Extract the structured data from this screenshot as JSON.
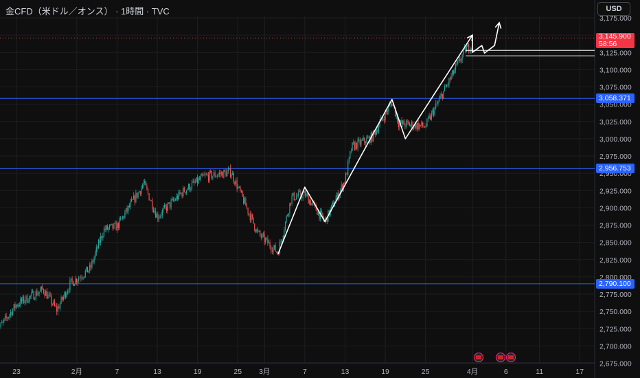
{
  "header": {
    "title": "金CFD（米ドル／オンス） · 1時間 · TVC",
    "currency": "USD"
  },
  "colors": {
    "background": "#0f0f0f",
    "grid": "#1e1f23",
    "up": "#26a69a",
    "down": "#ef5350",
    "level_line": "#2962ff",
    "current_price": "#f23645",
    "drawing": "#ffffff",
    "axis_text": "#b2b5be"
  },
  "chart_data": {
    "type": "candlestick",
    "timeframe": "1h",
    "x_tick_labels": [
      "23",
      "2月",
      "7",
      "13",
      "19",
      "25",
      "3月",
      "7",
      "13",
      "19",
      "25",
      "4月",
      "6",
      "11",
      "17"
    ],
    "y_tick_labels": [
      "3,175.000",
      "3,150.000",
      "3,125.000",
      "3,100.000",
      "3,075.000",
      "3,050.000",
      "3,025.000",
      "3,000.000",
      "2,975.000",
      "2,950.000",
      "2,925.000",
      "2,900.000",
      "2,875.000",
      "2,850.000",
      "2,825.000",
      "2,800.000",
      "2,775.000",
      "2,750.000",
      "2,725.000",
      "2,700.000",
      "2,675.000"
    ],
    "ylim": [
      2670,
      3180
    ],
    "horizontal_levels": [
      {
        "label": "3,058.371",
        "value": 3058.371
      },
      {
        "label": "2,956.753",
        "value": 2956.753
      },
      {
        "label": "2,790.100",
        "value": 2790.1
      }
    ],
    "current_price": {
      "label": "3,145.900",
      "value": 3145.9,
      "countdown": "58:56"
    },
    "price_path": [
      {
        "date": "01-20",
        "price": 2720
      },
      {
        "date": "01-23",
        "price": 2760
      },
      {
        "date": "01-27",
        "price": 2782
      },
      {
        "date": "01-29",
        "price": 2752
      },
      {
        "date": "01-31",
        "price": 2790
      },
      {
        "date": "02-03",
        "price": 2812
      },
      {
        "date": "02-05",
        "price": 2868
      },
      {
        "date": "02-07",
        "price": 2873
      },
      {
        "date": "02-11",
        "price": 2935
      },
      {
        "date": "02-13",
        "price": 2887
      },
      {
        "date": "02-17",
        "price": 2925
      },
      {
        "date": "02-20",
        "price": 2945
      },
      {
        "date": "02-24",
        "price": 2952
      },
      {
        "date": "02-28",
        "price": 2863
      },
      {
        "date": "03-03",
        "price": 2835
      },
      {
        "date": "03-05",
        "price": 2915
      },
      {
        "date": "03-07",
        "price": 2920
      },
      {
        "date": "03-10",
        "price": 2880
      },
      {
        "date": "03-13",
        "price": 2940
      },
      {
        "date": "03-14",
        "price": 2988
      },
      {
        "date": "03-17",
        "price": 3002
      },
      {
        "date": "03-20",
        "price": 3053
      },
      {
        "date": "03-21",
        "price": 3022
      },
      {
        "date": "03-25",
        "price": 3018
      },
      {
        "date": "03-27",
        "price": 3055
      },
      {
        "date": "03-31",
        "price": 3130
      },
      {
        "date": "04-01",
        "price": 3135
      }
    ],
    "drawings": {
      "zigzag": [
        {
          "date": "03-03",
          "price": 2833
        },
        {
          "date": "03-07",
          "price": 2930
        },
        {
          "date": "03-10",
          "price": 2880
        },
        {
          "date": "03-20",
          "price": 3057
        },
        {
          "date": "03-22",
          "price": 3000
        },
        {
          "date": "04-01",
          "price": 3150
        },
        {
          "date": "04-01",
          "price": 3125
        },
        {
          "date": "04-02",
          "price": 3135
        },
        {
          "date": "04-02",
          "price": 3124
        },
        {
          "date": "04-03",
          "price": 3135
        },
        {
          "date": "04-05",
          "price": 3168
        }
      ],
      "range_box": {
        "from_date": "03-31",
        "to_date": "04-17",
        "top": 3128,
        "bottom": 3120
      }
    },
    "event_markers": [
      "us-flag-icon",
      "us-flag-icon",
      "us-flag-icon"
    ]
  }
}
